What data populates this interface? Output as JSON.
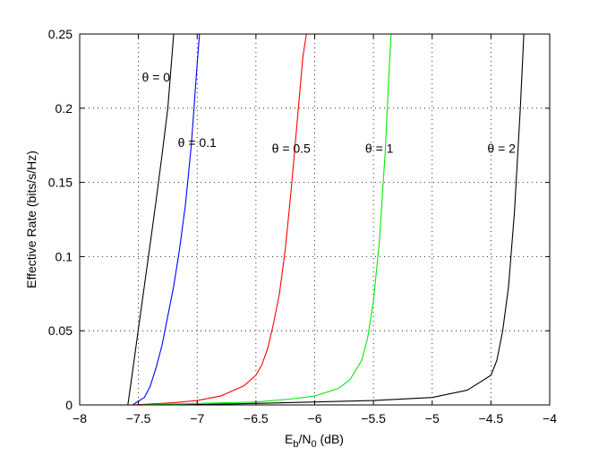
{
  "chart_data": {
    "type": "line",
    "xlabel": {
      "base": "E",
      "sub1": "b",
      "mid": "/N",
      "sub2": "0",
      "tail": " (dB)"
    },
    "ylabel": "Effective Rate (bits/s/Hz)",
    "xlim": [
      -8,
      -4
    ],
    "ylim": [
      0,
      0.25
    ],
    "grid": true,
    "x_ticks": [
      -8,
      -7.5,
      -7,
      -6.5,
      -6,
      -5.5,
      -5,
      -4.5,
      -4
    ],
    "x_tick_labels": [
      "−8",
      "−7.5",
      "−7",
      "−6.5",
      "−6",
      "−5.5",
      "−5",
      "−4.5",
      "−4"
    ],
    "y_ticks": [
      0,
      0.05,
      0.1,
      0.15,
      0.2,
      0.25
    ],
    "y_tick_labels": [
      "0",
      "0.05",
      "0.1",
      "0.15",
      "0.2",
      "0.25"
    ],
    "series": [
      {
        "name": "θ = 0",
        "color": "#000000",
        "x": [
          -7.59,
          -7.55,
          -7.5,
          -7.45,
          -7.4,
          -7.35,
          -7.3,
          -7.25,
          -7.2
        ],
        "y": [
          0.0,
          0.0225,
          0.0515,
          0.08,
          0.1085,
          0.1375,
          0.168,
          0.2,
          0.25
        ]
      },
      {
        "name": "θ = 0.1",
        "color": "#0000ff",
        "x": [
          -7.55,
          -7.45,
          -7.4,
          -7.35,
          -7.3,
          -7.25,
          -7.2,
          -7.15,
          -7.1,
          -7.05,
          -7.0,
          -6.98
        ],
        "y": [
          0.0,
          0.005,
          0.0125,
          0.025,
          0.04,
          0.06,
          0.08,
          0.105,
          0.135,
          0.175,
          0.23,
          0.25
        ]
      },
      {
        "name": "θ = 0.5",
        "color": "#ff0000",
        "x": [
          -7.55,
          -7.2,
          -7.0,
          -6.8,
          -6.6,
          -6.5,
          -6.45,
          -6.4,
          -6.35,
          -6.3,
          -6.25,
          -6.2,
          -6.15,
          -6.1,
          -6.07
        ],
        "y": [
          0.0,
          0.0015,
          0.003,
          0.006,
          0.013,
          0.02,
          0.027,
          0.038,
          0.055,
          0.075,
          0.105,
          0.145,
          0.19,
          0.235,
          0.25
        ]
      },
      {
        "name": "θ = 1",
        "color": "#00ee00",
        "x": [
          -7.5,
          -7.0,
          -6.5,
          -6.2,
          -6.0,
          -5.8,
          -5.7,
          -5.6,
          -5.55,
          -5.5,
          -5.45,
          -5.4,
          -5.37,
          -5.35
        ],
        "y": [
          0.0,
          0.001,
          0.002,
          0.004,
          0.006,
          0.011,
          0.017,
          0.03,
          0.045,
          0.07,
          0.11,
          0.17,
          0.22,
          0.25
        ]
      },
      {
        "name": "θ = 2",
        "color": "#000000",
        "x": [
          -7.2,
          -6.5,
          -6.0,
          -5.5,
          -5.0,
          -4.7,
          -4.5,
          -4.45,
          -4.4,
          -4.35,
          -4.3,
          -4.25,
          -4.22
        ],
        "y": [
          0.0,
          0.001,
          0.002,
          0.003,
          0.005,
          0.01,
          0.02,
          0.03,
          0.05,
          0.08,
          0.13,
          0.2,
          0.25
        ]
      }
    ],
    "annotations": [
      {
        "text": "θ = 0",
        "x": -7.35,
        "y": 0.218
      },
      {
        "text": "θ = 0.1",
        "x": -7.0,
        "y": 0.174
      },
      {
        "text": "θ = 0.5",
        "x": -6.2,
        "y": 0.17
      },
      {
        "text": "θ = 1",
        "x": -5.45,
        "y": 0.17
      },
      {
        "text": "θ = 2",
        "x": -4.41,
        "y": 0.17
      }
    ]
  }
}
